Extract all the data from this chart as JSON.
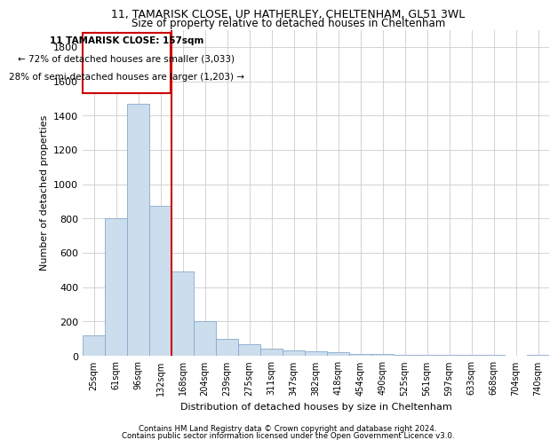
{
  "title_line1": "11, TAMARISK CLOSE, UP HATHERLEY, CHELTENHAM, GL51 3WL",
  "title_line2": "Size of property relative to detached houses in Cheltenham",
  "xlabel": "Distribution of detached houses by size in Cheltenham",
  "ylabel": "Number of detached properties",
  "footer_line1": "Contains HM Land Registry data © Crown copyright and database right 2024.",
  "footer_line2": "Contains public sector information licensed under the Open Government Licence v3.0.",
  "annotation_line1": "11 TAMARISK CLOSE: 157sqm",
  "annotation_line2": "← 72% of detached houses are smaller (3,033)",
  "annotation_line3": "28% of semi-detached houses are larger (1,203) →",
  "bar_color": "#ccdded",
  "bar_edge_color": "#88aacc",
  "vline_color": "#cc0000",
  "annotation_box_edge": "#cc0000",
  "categories": [
    "25sqm",
    "61sqm",
    "96sqm",
    "132sqm",
    "168sqm",
    "204sqm",
    "239sqm",
    "275sqm",
    "311sqm",
    "347sqm",
    "382sqm",
    "418sqm",
    "454sqm",
    "490sqm",
    "525sqm",
    "561sqm",
    "597sqm",
    "633sqm",
    "668sqm",
    "704sqm",
    "740sqm"
  ],
  "values": [
    120,
    800,
    1470,
    875,
    490,
    200,
    100,
    65,
    40,
    30,
    25,
    20,
    10,
    8,
    5,
    5,
    5,
    3,
    3,
    2,
    5
  ],
  "ylim": [
    0,
    1900
  ],
  "yticks": [
    0,
    200,
    400,
    600,
    800,
    1000,
    1200,
    1400,
    1600,
    1800
  ],
  "vline_x_index": 3.5,
  "grid_color": "#cccccc"
}
